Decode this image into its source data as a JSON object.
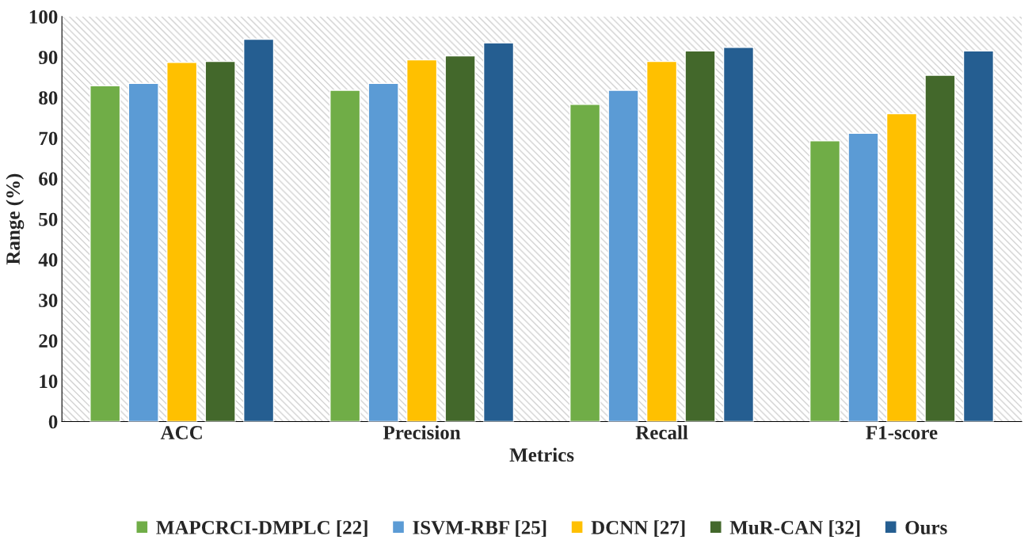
{
  "chart_data": {
    "type": "bar",
    "xlabel": "Metrics",
    "ylabel": "Range (%)",
    "categories": [
      "ACC",
      "Precision",
      "Recall",
      "F1-score"
    ],
    "series": [
      {
        "name": "MAPCRCI-DMPLC [22]",
        "color": "#70ad47",
        "values": [
          82.9,
          81.8,
          78.3,
          69.3
        ]
      },
      {
        "name": "ISVM-RBF [25]",
        "color": "#5b9bd5",
        "values": [
          83.5,
          83.5,
          81.8,
          71.2
        ]
      },
      {
        "name": "DCNN [27]",
        "color": "#ffc000",
        "values": [
          88.7,
          89.3,
          88.9,
          76.0
        ]
      },
      {
        "name": "MuR-CAN [32]",
        "color": "#43682b",
        "values": [
          88.9,
          90.3,
          91.5,
          85.5
        ]
      },
      {
        "name": "Ours",
        "color": "#255e91",
        "values": [
          94.4,
          93.5,
          92.4,
          91.5
        ]
      }
    ],
    "ylim": [
      0,
      100
    ],
    "yticks": [
      0,
      10,
      20,
      30,
      40,
      50,
      60,
      70,
      80,
      90,
      100
    ],
    "grid": false,
    "legend": "bottom"
  }
}
